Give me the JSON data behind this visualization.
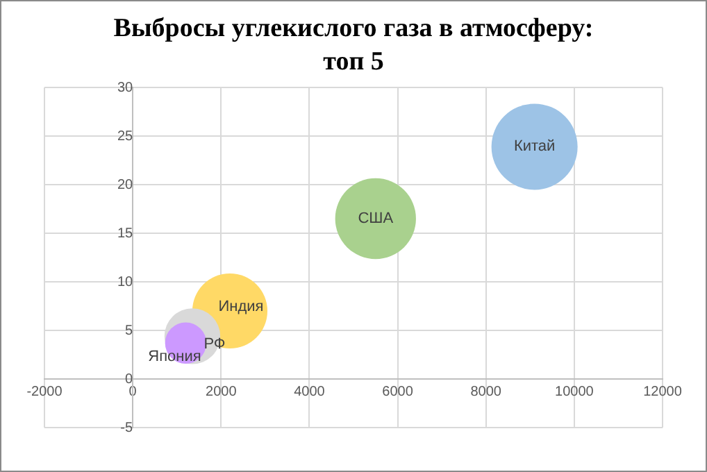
{
  "chart_data": {
    "type": "bubble",
    "title": "Выбросы углекислого газа в атмосферу: топ 5",
    "series": [
      {
        "name": "Китай",
        "color": "#9dc3e6",
        "x": [
          9100
        ],
        "values": [
          23.9
        ],
        "sizes": [
          1
        ]
      },
      {
        "name": "США",
        "color": "#a9d18e",
        "x": [
          5500
        ],
        "values": [
          16.5
        ],
        "sizes": [
          0.88
        ]
      },
      {
        "name": "Индия",
        "color": "#ffd966",
        "x": [
          2200
        ],
        "values": [
          7
        ],
        "sizes": [
          0.76
        ]
      },
      {
        "name": "РФ",
        "color": "#d9d9d9",
        "x": [
          1350
        ],
        "values": [
          4.4
        ],
        "sizes": [
          0.42
        ]
      },
      {
        "name": "Япония",
        "color": "#cc99ff",
        "x": [
          1200
        ],
        "values": [
          3.7
        ],
        "sizes": [
          0.23
        ]
      }
    ],
    "xlim": [
      -2000,
      12000
    ],
    "xticks": [
      -2000,
      0,
      2000,
      4000,
      6000,
      8000,
      10000,
      12000
    ],
    "ylim": [
      -5,
      30
    ],
    "yticks": [
      -5,
      0,
      5,
      10,
      15,
      20,
      25,
      30
    ],
    "grid": true,
    "legend": false
  }
}
